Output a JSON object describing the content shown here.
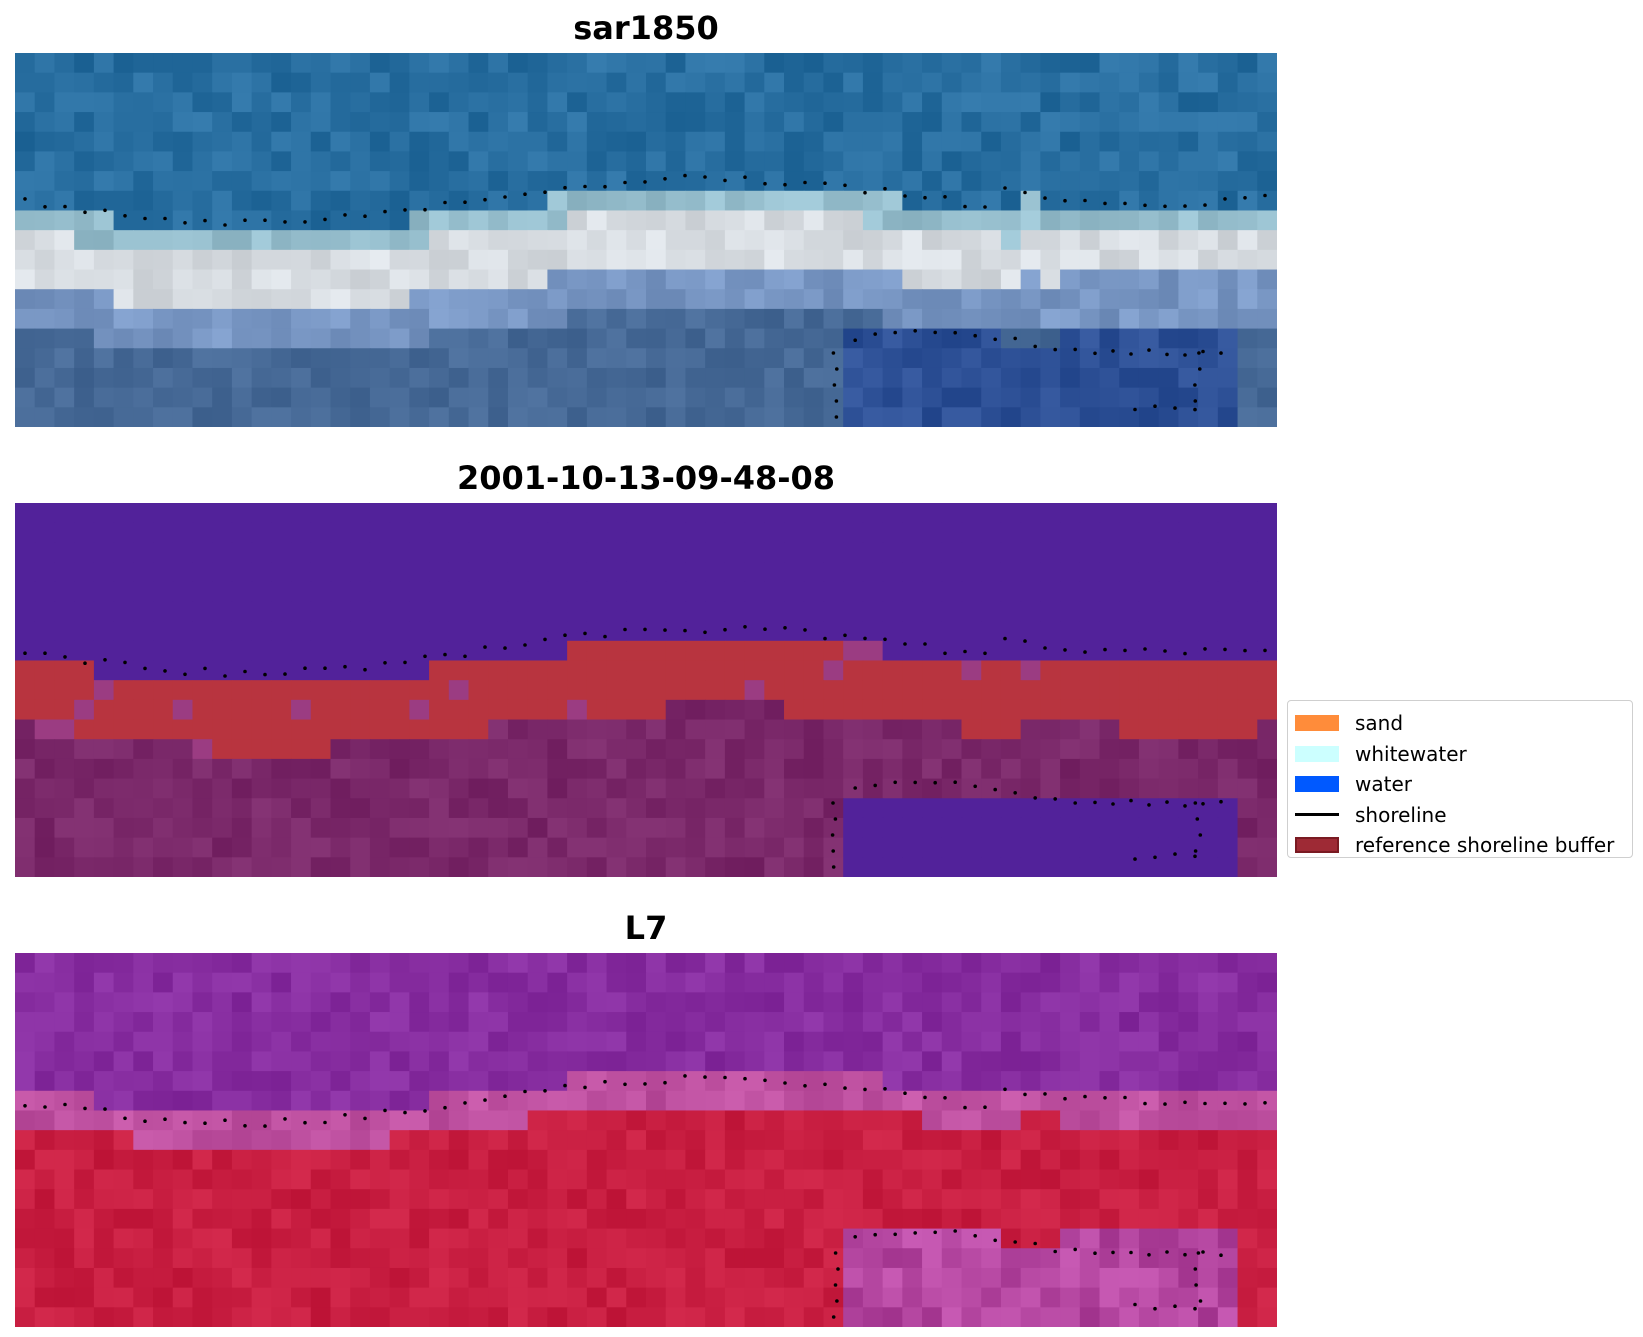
{
  "panels": [
    {
      "id": "rgb",
      "title": "sar1850",
      "scheme": "rgb"
    },
    {
      "id": "class",
      "title": "2001-10-13-09-48-08",
      "scheme": "class"
    },
    {
      "id": "ndwi",
      "title": "L7",
      "scheme": "ndwi"
    }
  ],
  "legend": {
    "items": [
      {
        "label": "sand",
        "color": "#ff8c3a",
        "kind": "patch"
      },
      {
        "label": "whitewater",
        "color": "#ccffff",
        "kind": "patch"
      },
      {
        "label": "water",
        "color": "#0059ff",
        "kind": "patch"
      },
      {
        "label": "shoreline",
        "color": "#000000",
        "kind": "line"
      },
      {
        "label": "reference shoreline buffer",
        "color": "#9e2a35",
        "kind": "patch-edge"
      }
    ]
  },
  "colors": {
    "class_water_overlay": "#52229a",
    "class_buffer_red": "#b8343f",
    "class_land_purple": "#7a3070",
    "ndwi_purple": "#8a2fa0",
    "ndwi_red": "#c8183f",
    "rgb_water_blue": "#2f6ea0",
    "rgb_bright": "#e8e8e0"
  }
}
